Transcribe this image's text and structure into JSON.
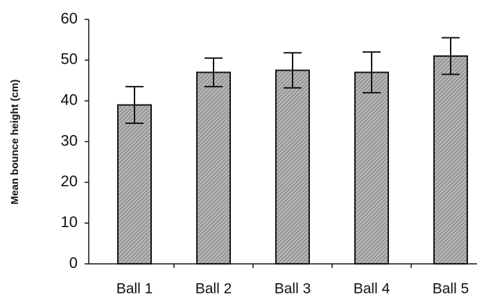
{
  "chart_data": {
    "type": "bar",
    "categories": [
      "Ball 1",
      "Ball 2",
      "Ball 3",
      "Ball 4",
      "Ball 5"
    ],
    "values": [
      39,
      47,
      47.5,
      47,
      51
    ],
    "errors": [
      4.5,
      3.5,
      4.3,
      5,
      4.5
    ],
    "y_label": "Mean bounce height (cm)",
    "color": "#a8a8a8",
    "ylim": [
      0,
      60
    ],
    "yticks": [
      0,
      10,
      20,
      30,
      40,
      50,
      60
    ],
    "grid": false
  }
}
